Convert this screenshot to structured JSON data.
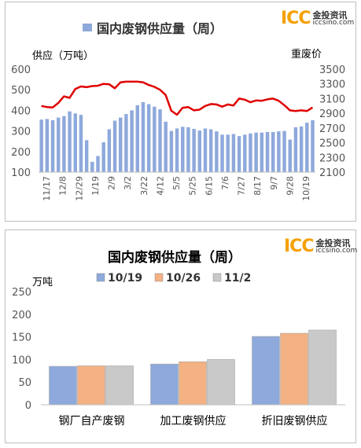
{
  "logo": {
    "mark": "ICC",
    "cn": "金投资讯",
    "url": "iccsino.com",
    "color": "#f5a000"
  },
  "chart_data": [
    {
      "type": "bar+line",
      "title": "",
      "legend": [
        {
          "name": "国内废钢供应量（周）",
          "color": "#8ea9db",
          "kind": "bar"
        }
      ],
      "legend_position": "top",
      "y_left_label": "供应（万吨）",
      "y_right_label": "重废价",
      "y_left_ticks": [
        "100",
        "200",
        "300",
        "400",
        "500",
        "600"
      ],
      "y_right_ticks": [
        "2100",
        "2300",
        "2500",
        "2700",
        "2900",
        "3100",
        "3300",
        "3500"
      ],
      "ylim_left": [
        100,
        600
      ],
      "ylim_right": [
        2100,
        3500
      ],
      "x_tick_labels": [
        "11/17",
        "12/8",
        "12/29",
        "1/19",
        "2/9",
        "3/2",
        "3/22",
        "4/12",
        "5/5",
        "5/25",
        "6/15",
        "7/6",
        "7/27",
        "8/17",
        "9/7",
        "9/28",
        "10/19"
      ],
      "supply": [
        355,
        358,
        352,
        365,
        372,
        395,
        385,
        378,
        255,
        150,
        178,
        245,
        308,
        350,
        365,
        382,
        400,
        425,
        440,
        430,
        418,
        405,
        345,
        300,
        312,
        320,
        318,
        310,
        302,
        312,
        308,
        298,
        282,
        282,
        285,
        275,
        282,
        288,
        292,
        292,
        295,
        295,
        298,
        300,
        258,
        318,
        322,
        340,
        352
      ],
      "price_series_color": "#e00000",
      "price": [
        3000,
        2985,
        2980,
        3040,
        3130,
        3110,
        3230,
        3265,
        3255,
        3270,
        3275,
        3300,
        3295,
        3240,
        3320,
        3330,
        3330,
        3330,
        3320,
        3285,
        3260,
        3220,
        3150,
        2935,
        2880,
        2975,
        2985,
        2940,
        2950,
        3000,
        3025,
        3020,
        2990,
        3020,
        3005,
        3100,
        3085,
        3050,
        3075,
        3070,
        3090,
        3100,
        3070,
        3010,
        2940,
        2930,
        2940,
        2930,
        2980
      ]
    },
    {
      "type": "bar",
      "title": "国内废钢供应量（周）",
      "ylabel": "万吨",
      "ylim": [
        0,
        250
      ],
      "y_ticks": [
        "0",
        "50",
        "100",
        "150",
        "200",
        "250"
      ],
      "categories": [
        "钢厂自产废钢",
        "加工废钢供应",
        "折旧废钢供应"
      ],
      "legend_position": "top",
      "series": [
        {
          "name": "10/19",
          "color": "#8ea9db",
          "values": [
            85,
            90,
            151
          ]
        },
        {
          "name": "10/26",
          "color": "#f4b183",
          "values": [
            86,
            95,
            158
          ]
        },
        {
          "name": "11/2",
          "color": "#c9c9c9",
          "values": [
            86,
            100,
            165
          ]
        }
      ]
    }
  ]
}
